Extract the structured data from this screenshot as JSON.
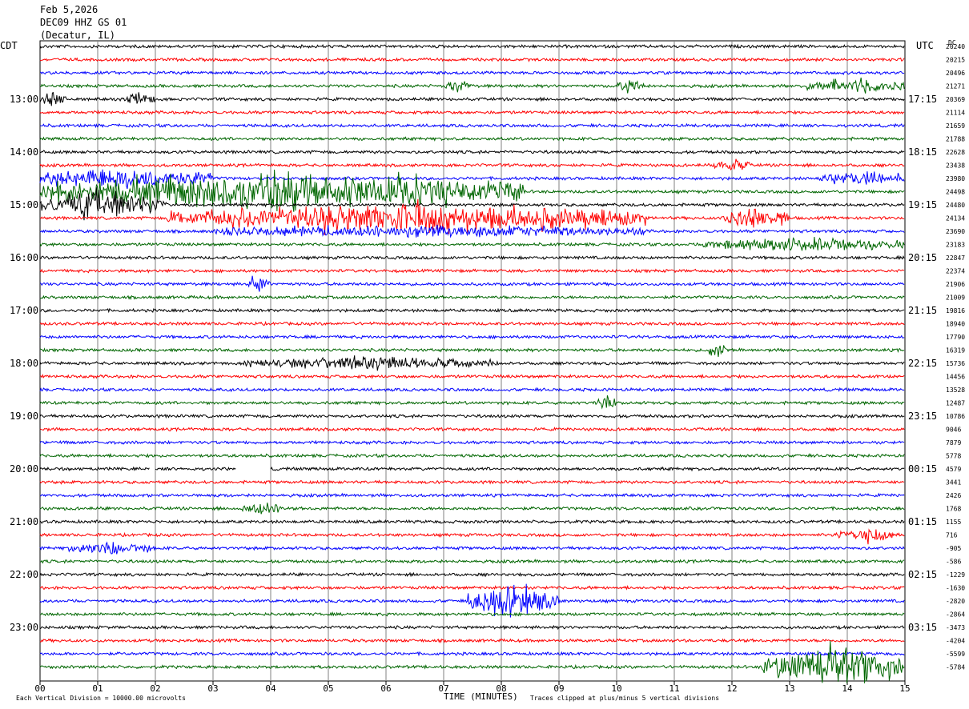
{
  "header": {
    "date": "Feb 5,2026",
    "station": "DEC09 HHZ GS 01",
    "location": "(Decatur, IL)"
  },
  "labels": {
    "left_zone": "CDT",
    "right_zone": "UTC",
    "dc": "DC",
    "x_axis": "TIME (MINUTES)",
    "footer_left": "Each Vertical Division = 10000.00 microvolts",
    "footer_right": "Traces clipped at plus/minus 5 vertical divisions"
  },
  "colors": {
    "trace_cycle": [
      "#000000",
      "#ff0000",
      "#0000ff",
      "#006600"
    ],
    "grid": "#808080"
  },
  "chart_data": {
    "type": "line",
    "title": "DEC09 HHZ GS 01",
    "xlabel": "TIME (MINUTES)",
    "xlim": [
      0,
      15
    ],
    "x_ticks": [
      "00",
      "01",
      "02",
      "03",
      "04",
      "05",
      "06",
      "07",
      "08",
      "09",
      "10",
      "11",
      "12",
      "13",
      "14",
      "15"
    ],
    "traces_per_hour": 4,
    "trace_count": 48,
    "left_hour_labels": [
      "13:00",
      "14:00",
      "15:00",
      "16:00",
      "17:00",
      "18:00",
      "19:00",
      "20:00",
      "21:00",
      "22:00",
      "23:00"
    ],
    "right_hour_labels": [
      "17:15",
      "18:15",
      "19:15",
      "20:15",
      "21:15",
      "22:15",
      "23:15",
      "00:15",
      "01:15",
      "02:15",
      "03:15"
    ],
    "dc_offsets": [
      "20240",
      "20215",
      "20496",
      "21271",
      "20369",
      "21114",
      "21659",
      "21788",
      "22628",
      "23438",
      "23980",
      "24498",
      "24480",
      "24134",
      "23690",
      "23183",
      "22847",
      "22374",
      "21906",
      "21009",
      "19816",
      "18940",
      "17790",
      "16319",
      "15736",
      "14456",
      "13528",
      "12487",
      "10786",
      "9046",
      "7879",
      "5778",
      "4579",
      "3441",
      "2426",
      "1768",
      "1155",
      "716",
      "-905",
      "-586",
      "-1229",
      "-1630",
      "-2820",
      "-2864",
      "-3473",
      "-4204",
      "-5599",
      "-5784"
    ],
    "events": [
      {
        "trace": 3,
        "start": 7.0,
        "end": 7.5,
        "amp": 1.4
      },
      {
        "trace": 3,
        "start": 10.0,
        "end": 10.5,
        "amp": 1.3
      },
      {
        "trace": 3,
        "start": 13.3,
        "end": 15.0,
        "amp": 1.5
      },
      {
        "trace": 4,
        "start": 0.0,
        "end": 0.5,
        "amp": 1.6
      },
      {
        "trace": 4,
        "start": 1.5,
        "end": 2.0,
        "amp": 1.4
      },
      {
        "trace": 9,
        "start": 11.7,
        "end": 12.3,
        "amp": 1.3
      },
      {
        "trace": 10,
        "start": 0.0,
        "end": 3.0,
        "amp": 2.5
      },
      {
        "trace": 10,
        "start": 13.5,
        "end": 15.0,
        "amp": 1.5
      },
      {
        "trace": 11,
        "start": 0.0,
        "end": 8.4,
        "amp": 4.5
      },
      {
        "trace": 12,
        "start": 0.0,
        "end": 2.2,
        "amp": 3.5
      },
      {
        "trace": 13,
        "start": 2.2,
        "end": 10.5,
        "amp": 3.5
      },
      {
        "trace": 13,
        "start": 11.8,
        "end": 13.0,
        "amp": 2.2
      },
      {
        "trace": 14,
        "start": 3.0,
        "end": 10.5,
        "amp": 1.3
      },
      {
        "trace": 15,
        "start": 11.5,
        "end": 15.0,
        "amp": 1.4
      },
      {
        "trace": 18,
        "start": 3.6,
        "end": 4.0,
        "amp": 1.8
      },
      {
        "trace": 23,
        "start": 11.6,
        "end": 11.9,
        "amp": 1.6
      },
      {
        "trace": 24,
        "start": 3.5,
        "end": 8.0,
        "amp": 1.2
      },
      {
        "trace": 27,
        "start": 9.6,
        "end": 10.0,
        "amp": 1.5
      },
      {
        "trace": 35,
        "start": 3.5,
        "end": 4.2,
        "amp": 1.4
      },
      {
        "trace": 37,
        "start": 13.8,
        "end": 14.8,
        "amp": 1.8
      },
      {
        "trace": 38,
        "start": 0.5,
        "end": 2.0,
        "amp": 1.4
      },
      {
        "trace": 42,
        "start": 7.4,
        "end": 9.0,
        "amp": 3.8
      },
      {
        "trace": 47,
        "start": 12.5,
        "end": 15.0,
        "amp": 4.5
      }
    ],
    "gaps": [
      {
        "trace": 32,
        "start": 1.9,
        "end": 2.0
      },
      {
        "trace": 32,
        "start": 3.4,
        "end": 4.0
      }
    ]
  }
}
